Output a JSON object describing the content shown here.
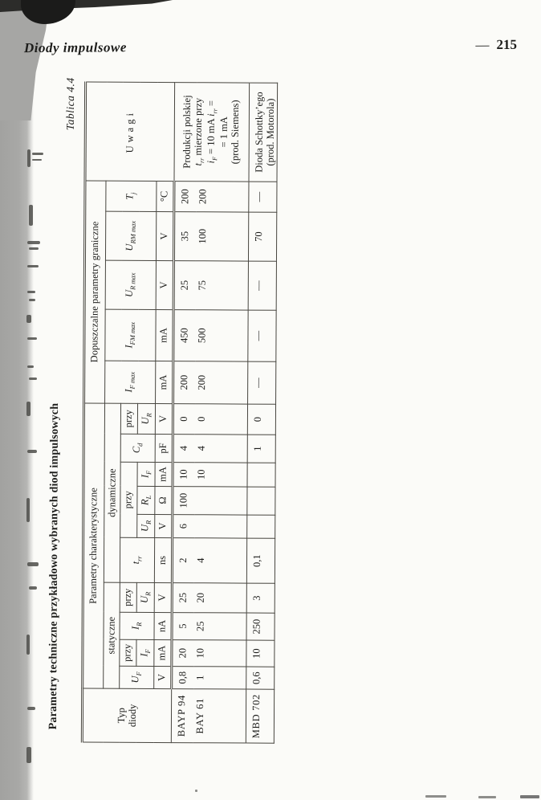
{
  "page": {
    "running_title": "Diody impulsowe",
    "page_dash": "—",
    "page_number": "215"
  },
  "table": {
    "caption": "Tablica 4.4",
    "title": "Parametry techniczne przykładowo wybranych diod impulsowych",
    "corner_lines": [
      "Typ",
      "diody"
    ],
    "group_headers": {
      "characteristic": "Parametry charakterystyczne",
      "limits": "Dopuszczalne parametry graniczne"
    },
    "subgroup_headers": {
      "static": "statyczne",
      "dynamic": "dynamiczne"
    },
    "przy": "przy",
    "uwagi": "Uwagi",
    "symbols": {
      "uf": {
        "m": "U",
        "s": "F"
      },
      "if": {
        "m": "I",
        "s": "F"
      },
      "ir": {
        "m": "I",
        "s": "R"
      },
      "ur": {
        "m": "U",
        "s": "R"
      },
      "trr": {
        "m": "t",
        "s": "rr"
      },
      "rl": {
        "m": "R",
        "s": "L"
      },
      "cd": {
        "m": "C",
        "s": "d"
      },
      "ifmax": {
        "m": "I",
        "s": "F max"
      },
      "ifmmax": {
        "m": "I",
        "s": "FM max"
      },
      "urmax": {
        "m": "U",
        "s": "R max"
      },
      "urmmax": {
        "m": "U",
        "s": "RM max"
      },
      "tj": {
        "m": "T",
        "s": "j"
      }
    },
    "units": [
      "V",
      "mA",
      "nA",
      "V",
      "ns",
      "V",
      "Ω",
      "mA",
      "pF",
      "V",
      "mA",
      "mA",
      "V",
      "V",
      "°C"
    ],
    "rows": [
      {
        "typ": "BAYP 94",
        "values": [
          "0,8",
          "20",
          "5",
          "25",
          "2",
          "6",
          "100",
          "10",
          "4",
          "0",
          "200",
          "450",
          "25",
          "35",
          "200"
        ],
        "note": "group"
      },
      {
        "typ": "BAY 61",
        "values": [
          "1",
          "10",
          "25",
          "20",
          "4",
          "",
          "",
          "10",
          "4",
          "0",
          "200",
          "500",
          "75",
          "100",
          "200"
        ],
        "note": null
      },
      {
        "typ": "MBD 702",
        "values": [
          "0,6",
          "10",
          "250",
          "3",
          "0,1",
          "",
          "",
          "",
          "1",
          "0",
          "—",
          "—",
          "—",
          "70",
          "—"
        ],
        "note": "mbd"
      }
    ],
    "notes": {
      "group": [
        [
          {
            "t": "Produkcji polskiej"
          }
        ],
        [
          {
            "i": "t",
            "s": "rr"
          },
          {
            "t": " mierzone przy"
          }
        ],
        [
          {
            "i": "i",
            "s": "F"
          },
          {
            "t": " = 10 mA "
          },
          {
            "i": "i",
            "s": "rr"
          },
          {
            "t": " ="
          }
        ],
        [
          {
            "t": "= 1 mA"
          }
        ],
        [
          {
            "t": "(prod. Siemens)"
          }
        ]
      ],
      "mbd": [
        [
          {
            "t": "Dioda Schottky’ego"
          }
        ],
        [
          {
            "t": "(prod. Motorola)"
          }
        ]
      ]
    }
  }
}
